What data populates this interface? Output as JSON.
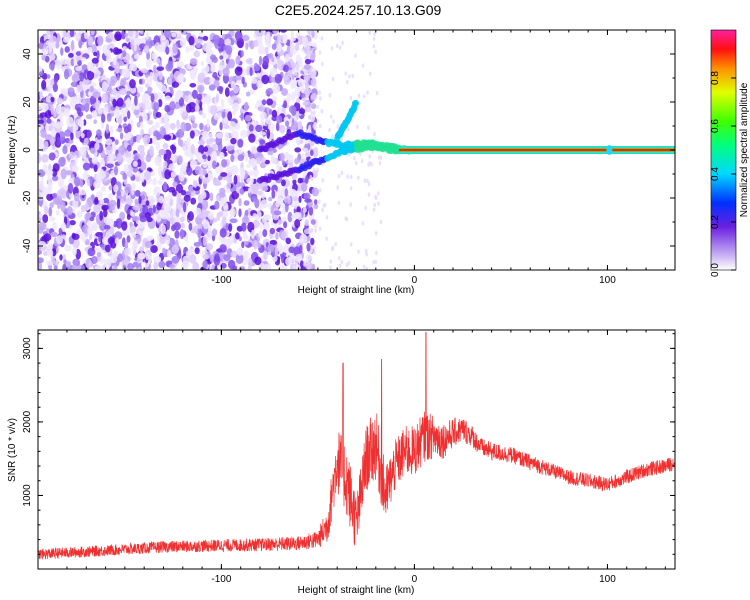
{
  "title": "C2E5.2024.257.10.13.G09",
  "chart_data": [
    {
      "type": "heatmap",
      "xlabel": "Height of straight line (km)",
      "ylabel": "Frequency (Hz)",
      "xlim": [
        -195,
        135
      ],
      "ylim": [
        -50,
        50
      ],
      "xticks": [
        -100,
        0,
        100
      ],
      "yticks": [
        -40,
        -20,
        0,
        20,
        40
      ],
      "colorbar": {
        "label": "Normalized spectral amplitude",
        "range": [
          0,
          1
        ],
        "ticks": [
          0.0,
          0.2,
          0.4,
          0.6,
          0.8
        ]
      },
      "noise_region_x": [
        -195,
        -57
      ],
      "main_line": {
        "frequency_hz": 0,
        "x_start": 0,
        "x_end": 135,
        "amplitude": 0.95
      },
      "converging_branches": [
        {
          "x": [
            -80,
            -60,
            -45,
            -35,
            -25,
            -10,
            0
          ],
          "y": [
            0,
            7,
            3,
            2,
            3,
            1,
            0
          ]
        },
        {
          "x": [
            -80,
            -60,
            -45,
            -35,
            -25,
            -10,
            0
          ],
          "y": [
            -13,
            -8,
            -3,
            0,
            1,
            0,
            0
          ]
        },
        {
          "x": [
            -40,
            -35,
            -30
          ],
          "y": [
            5,
            12,
            20
          ]
        }
      ]
    },
    {
      "type": "line",
      "xlabel": "Height of straight line (km)",
      "ylabel": "SNR (10 * v/v)",
      "xlim": [
        -195,
        135
      ],
      "ylim": [
        0,
        3250
      ],
      "xticks": [
        -100,
        0,
        100
      ],
      "yticks": [
        1000,
        2000,
        3000
      ],
      "series": [
        {
          "x": [
            -195,
            -160,
            -130,
            -100,
            -80,
            -60,
            -50,
            -45,
            -40,
            -35,
            -30,
            -25,
            -20,
            -15,
            -10,
            -5,
            0,
            5,
            10,
            15,
            20,
            25,
            30,
            35,
            40,
            50,
            60,
            70,
            80,
            90,
            100,
            110,
            120,
            130,
            135
          ],
          "y": [
            200,
            250,
            300,
            320,
            330,
            350,
            400,
            600,
            1500,
            1200,
            600,
            1500,
            1700,
            1000,
            1400,
            1600,
            1600,
            1800,
            1800,
            1750,
            1850,
            1900,
            1800,
            1650,
            1600,
            1550,
            1450,
            1350,
            1250,
            1200,
            1150,
            1250,
            1350,
            1400,
            1450
          ],
          "noise_amplitude": [
            150,
            150,
            160,
            170,
            180,
            200,
            250,
            500,
            900,
            1000,
            800,
            900,
            1000,
            800,
            700,
            700,
            700,
            700,
            600,
            500,
            400,
            350,
            300,
            250,
            250,
            220,
            220,
            200,
            200,
            200,
            200,
            200,
            200,
            200,
            200
          ],
          "peaks": [
            [
              -37,
              2800
            ],
            [
              -17,
              2850
            ],
            [
              6,
              3220
            ]
          ],
          "color": "#f03030"
        }
      ]
    }
  ]
}
